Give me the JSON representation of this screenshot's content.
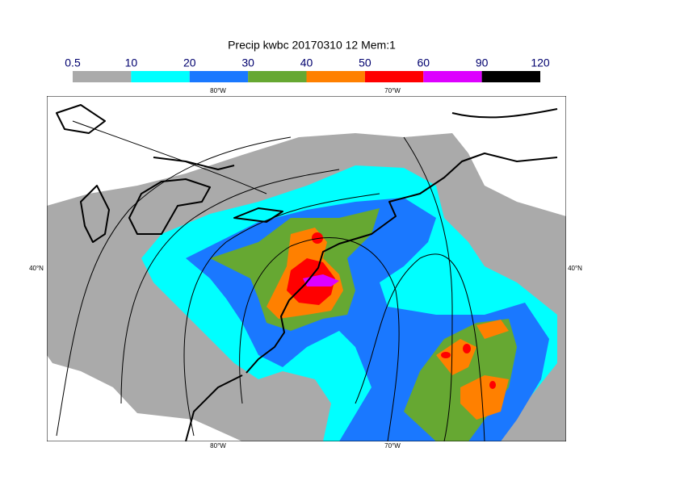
{
  "title": "Precip kwbc 20170310 12 Mem:1",
  "colorbar": {
    "levels": [
      0.5,
      10,
      20,
      30,
      40,
      50,
      60,
      90,
      120
    ],
    "colors": [
      "#aaaaaa",
      "#00ffff",
      "#1a78ff",
      "#66a832",
      "#ff8000",
      "#ff0000",
      "#dd00ff",
      "#000000"
    ]
  },
  "map": {
    "lon_labels": [
      "80°W",
      "70°W"
    ],
    "lat_labels": [
      "40°N"
    ]
  }
}
